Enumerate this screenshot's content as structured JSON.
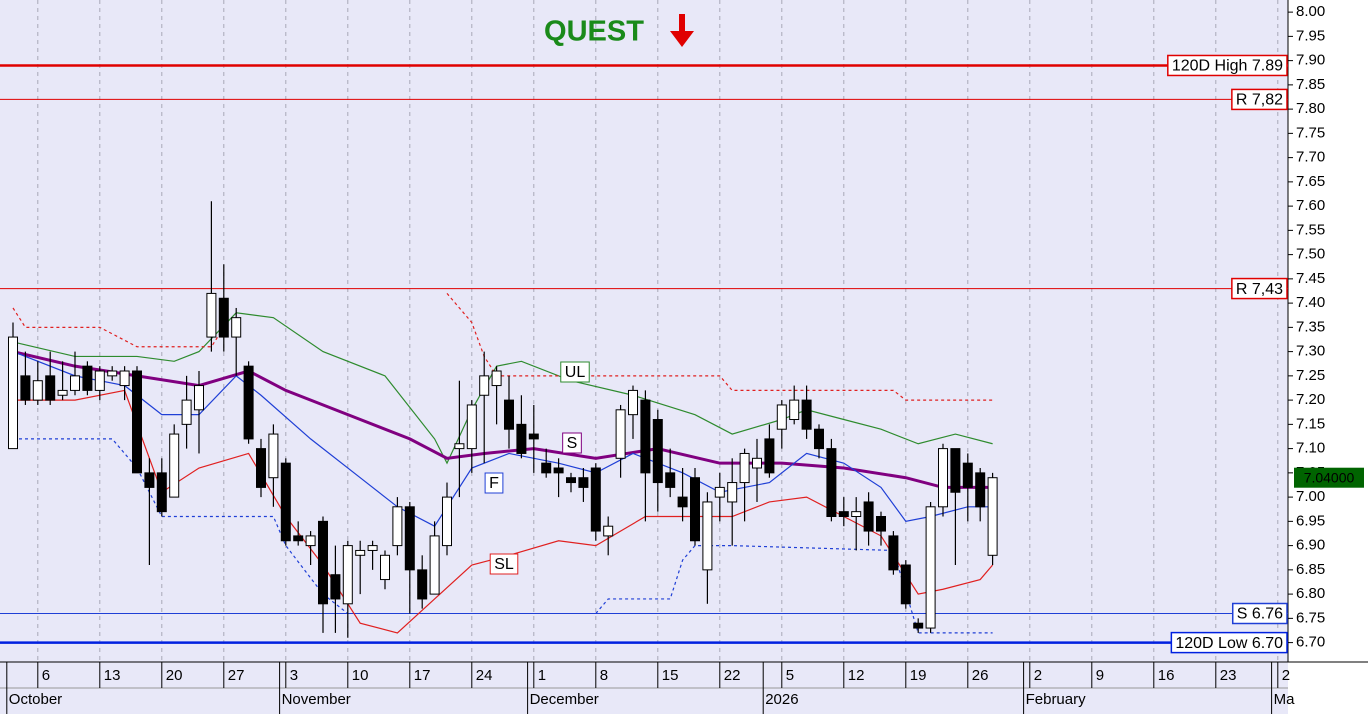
{
  "chart_data": {
    "type": "candlestick",
    "title": "QUEST",
    "categories": [
      null,
      null,
      "6",
      null,
      null,
      null,
      null,
      "13",
      null,
      null,
      null,
      null,
      "20",
      null,
      null,
      null,
      null,
      "27",
      null,
      null,
      null,
      null,
      "3",
      null,
      null,
      null,
      null,
      "10",
      null,
      null,
      null,
      null,
      "17",
      null,
      null,
      null,
      null,
      "24",
      null,
      null,
      null,
      null,
      "1",
      null,
      null,
      null,
      null,
      "8",
      null,
      null,
      null,
      null,
      "15",
      null,
      null,
      null,
      null,
      "22",
      null,
      null,
      null,
      null,
      "5",
      null,
      null,
      null,
      null,
      "12",
      null,
      null,
      null,
      null,
      "19",
      null,
      null,
      null,
      null,
      "26",
      null,
      null,
      null,
      null,
      "2",
      null,
      null,
      null,
      null,
      "9",
      null,
      null,
      null,
      null,
      "16",
      null,
      null,
      null,
      null,
      "23",
      null,
      null,
      null,
      null,
      "2"
    ],
    "month_categories": [
      "October",
      null,
      null,
      null,
      null,
      null,
      null,
      null,
      null,
      null,
      null,
      null,
      null,
      null,
      null,
      null,
      null,
      null,
      null,
      null,
      null,
      null,
      "November",
      null,
      null,
      null,
      null,
      null,
      null,
      null,
      null,
      null,
      null,
      null,
      null,
      null,
      null,
      null,
      null,
      null,
      null,
      null,
      "December",
      null,
      null,
      null,
      null,
      null,
      null,
      null,
      null,
      null,
      null,
      null,
      null,
      null,
      null,
      null,
      null,
      null,
      null,
      "2026",
      null,
      null,
      null,
      null,
      null,
      null,
      null,
      null,
      null,
      null,
      null,
      null,
      null,
      null,
      null,
      null,
      null,
      null,
      null,
      null,
      "February",
      null,
      null,
      null,
      null,
      null,
      null,
      null,
      null,
      null,
      null,
      null,
      null,
      null,
      null,
      null,
      null,
      null,
      null,
      null,
      "Ma"
    ],
    "open": [
      7.1,
      7.25,
      7.2,
      7.25,
      7.21,
      7.22,
      7.27,
      7.22,
      7.25,
      7.23,
      7.26,
      7.05,
      7.05,
      7.0,
      7.15,
      7.18,
      7.33,
      7.41,
      7.33,
      7.27,
      7.1,
      7.04,
      7.07,
      6.92,
      6.9,
      6.95,
      6.84,
      6.78,
      6.88,
      6.89,
      6.83,
      6.9,
      6.98,
      6.85,
      6.8,
      6.9,
      7.1,
      7.1,
      7.21,
      7.23,
      7.2,
      7.15,
      7.13,
      7.07,
      7.06,
      7.04,
      7.04,
      7.06,
      6.92,
      7.08,
      7.17,
      7.2,
      7.16,
      7.05,
      7.0,
      7.04,
      6.85,
      7.0,
      6.99,
      7.03,
      7.06,
      7.12,
      7.14,
      7.16,
      7.2,
      7.14,
      7.1,
      6.97,
      6.96,
      6.99,
      6.96,
      6.92,
      6.86,
      6.74,
      6.73,
      6.98,
      7.1,
      7.07,
      7.05,
      6.88,
      null,
      null,
      null,
      null,
      null,
      null,
      null,
      null,
      null,
      null,
      null,
      null,
      null,
      null,
      null,
      null,
      null,
      null,
      null,
      null,
      null,
      null,
      null
    ],
    "high": [
      7.36,
      7.3,
      7.28,
      7.3,
      7.28,
      7.3,
      7.28,
      7.27,
      7.27,
      7.27,
      7.27,
      7.08,
      7.08,
      7.15,
      7.25,
      7.26,
      7.61,
      7.48,
      7.39,
      7.28,
      7.12,
      7.15,
      7.08,
      6.95,
      6.93,
      6.96,
      6.9,
      6.91,
      6.91,
      6.91,
      6.89,
      7.0,
      6.99,
      6.88,
      6.95,
      7.03,
      7.24,
      7.2,
      7.3,
      7.27,
      7.25,
      7.21,
      7.19,
      7.1,
      7.08,
      7.05,
      7.06,
      7.07,
      6.96,
      7.19,
      7.23,
      7.22,
      7.18,
      7.1,
      7.06,
      7.06,
      7.01,
      7.05,
      7.08,
      7.1,
      7.12,
      7.15,
      7.2,
      7.23,
      7.23,
      7.15,
      7.12,
      7.0,
      7.0,
      7.01,
      6.97,
      6.93,
      6.87,
      6.75,
      6.99,
      7.11,
      7.1,
      7.09,
      7.06,
      7.05,
      null,
      null,
      null,
      null,
      null,
      null,
      null,
      null,
      null,
      null,
      null,
      null,
      null,
      null,
      null,
      null,
      null,
      null,
      null,
      null,
      null,
      null,
      null
    ],
    "low": [
      7.1,
      7.19,
      7.19,
      7.19,
      7.2,
      7.21,
      7.21,
      7.2,
      7.24,
      7.2,
      7.05,
      6.86,
      6.96,
      7.0,
      7.1,
      7.09,
      7.3,
      7.3,
      7.25,
      7.11,
      7.0,
      6.98,
      6.9,
      6.9,
      6.86,
      6.72,
      6.72,
      6.71,
      6.8,
      6.85,
      6.81,
      6.88,
      6.76,
      6.77,
      6.8,
      6.88,
      7.0,
      7.05,
      7.07,
      7.15,
      7.1,
      7.08,
      7.05,
      7.04,
      7.0,
      7.01,
      6.99,
      6.91,
      6.88,
      7.04,
      7.12,
      6.95,
      6.97,
      7.0,
      6.95,
      6.9,
      6.78,
      6.95,
      6.9,
      6.95,
      6.99,
      7.04,
      7.1,
      7.15,
      7.12,
      7.08,
      6.95,
      6.94,
      6.89,
      6.9,
      6.9,
      6.84,
      6.77,
      6.72,
      6.72,
      6.96,
      6.86,
      6.95,
      6.95,
      6.86,
      null,
      null,
      null,
      null,
      null,
      null,
      null,
      null,
      null,
      null,
      null,
      null,
      null,
      null,
      null,
      null,
      null,
      null,
      null,
      null,
      null,
      null,
      null
    ],
    "close": [
      7.33,
      7.2,
      7.24,
      7.2,
      7.22,
      7.25,
      7.22,
      7.26,
      7.26,
      7.26,
      7.05,
      7.02,
      6.97,
      7.13,
      7.2,
      7.23,
      7.42,
      7.33,
      7.37,
      7.12,
      7.02,
      7.13,
      6.91,
      6.91,
      6.92,
      6.78,
      6.79,
      6.9,
      6.89,
      6.9,
      6.88,
      6.98,
      6.85,
      6.79,
      6.92,
      7.0,
      7.11,
      7.19,
      7.25,
      7.26,
      7.14,
      7.09,
      7.12,
      7.05,
      7.05,
      7.03,
      7.02,
      6.93,
      6.94,
      7.18,
      7.22,
      7.05,
      7.03,
      7.02,
      6.98,
      6.91,
      6.99,
      7.02,
      7.03,
      7.09,
      7.08,
      7.05,
      7.19,
      7.2,
      7.14,
      7.1,
      6.96,
      6.96,
      6.97,
      6.93,
      6.93,
      6.85,
      6.78,
      6.73,
      6.98,
      7.1,
      7.01,
      7.02,
      6.98,
      7.04,
      null,
      null,
      null,
      null,
      null,
      null,
      null,
      null,
      null,
      null,
      null,
      null,
      null,
      null,
      null,
      null,
      null,
      null,
      null,
      null,
      null,
      null,
      null
    ],
    "series": [
      {
        "name": "UL",
        "color": "#2e8b2e",
        "x": [
          0,
          5,
          10,
          13,
          15,
          18,
          21,
          25,
          30,
          34,
          35,
          37,
          39,
          41,
          45,
          50,
          55,
          58,
          62,
          64,
          67,
          70,
          73,
          76,
          79
        ],
        "values": [
          7.32,
          7.29,
          7.29,
          7.28,
          7.3,
          7.38,
          7.37,
          7.3,
          7.25,
          7.12,
          7.07,
          7.18,
          7.27,
          7.28,
          7.24,
          7.21,
          7.17,
          7.13,
          7.16,
          7.18,
          7.16,
          7.14,
          7.11,
          7.13,
          7.11
        ]
      },
      {
        "name": "S",
        "color": "#800080",
        "width": 3,
        "x": [
          0,
          5,
          10,
          15,
          19,
          22,
          27,
          32,
          35,
          38,
          42,
          47,
          52,
          57,
          62,
          67,
          72,
          75,
          79
        ],
        "values": [
          7.3,
          7.27,
          7.25,
          7.23,
          7.26,
          7.22,
          7.17,
          7.12,
          7.08,
          7.09,
          7.1,
          7.08,
          7.1,
          7.07,
          7.07,
          7.06,
          7.04,
          7.02,
          7.02
        ]
      },
      {
        "name": "F",
        "color": "#1f3fd6",
        "x": [
          0,
          5,
          9,
          12,
          15,
          18,
          20,
          24,
          28,
          31,
          34,
          37,
          40,
          44,
          47,
          50,
          54,
          57,
          61,
          64,
          67,
          70,
          72,
          74,
          77,
          79
        ],
        "values": [
          7.3,
          7.25,
          7.23,
          7.17,
          7.17,
          7.25,
          7.21,
          7.12,
          7.04,
          6.98,
          6.94,
          7.06,
          7.09,
          7.07,
          7.05,
          7.09,
          7.05,
          7.01,
          7.03,
          7.09,
          7.07,
          7.02,
          6.95,
          6.96,
          6.98,
          6.98
        ]
      },
      {
        "name": "SL",
        "color": "#e02020",
        "x": [
          0,
          5,
          9,
          12,
          15,
          19,
          22,
          25,
          28,
          31,
          34,
          37,
          40,
          44,
          47,
          51,
          55,
          58,
          61,
          64,
          67,
          70,
          72,
          73,
          75,
          78,
          79
        ],
        "values": [
          7.2,
          7.2,
          7.22,
          7.01,
          7.06,
          7.09,
          6.96,
          6.86,
          6.74,
          6.72,
          6.79,
          6.86,
          6.88,
          6.91,
          6.9,
          6.96,
          6.96,
          6.96,
          6.99,
          7.0,
          6.96,
          6.92,
          6.84,
          6.8,
          6.81,
          6.83,
          6.86
        ]
      },
      {
        "color": "#e02020",
        "style": "dashed",
        "x": [
          0,
          1,
          7,
          10,
          16,
          17,
          26,
          35,
          37,
          38,
          39,
          57,
          58,
          71,
          72,
          79
        ],
        "values": [
          7.39,
          7.35,
          7.35,
          7.31,
          7.31,
          7.35,
          null,
          7.42,
          7.36,
          7.29,
          7.25,
          7.25,
          7.22,
          7.22,
          7.2,
          7.2
        ]
      },
      {
        "color": "#1f3fd6",
        "style": "dashed",
        "x": [
          0,
          8,
          10,
          12,
          21,
          22,
          25,
          27,
          37,
          47,
          48,
          53,
          54,
          55,
          58,
          71,
          73,
          79
        ],
        "values": [
          7.12,
          7.12,
          7.06,
          6.96,
          6.96,
          6.9,
          6.8,
          6.76,
          null,
          6.76,
          6.79,
          6.79,
          6.87,
          6.9,
          6.9,
          6.89,
          6.72,
          6.72
        ]
      }
    ],
    "levels": [
      {
        "label": "120D High 7.89",
        "value": 7.89,
        "color": "#e00000",
        "width": 2.5
      },
      {
        "label": "R 7,82",
        "value": 7.82,
        "color": "#e00000",
        "width": 1
      },
      {
        "label": "R 7,43",
        "value": 7.43,
        "color": "#e00000",
        "width": 1
      },
      {
        "label": "S 6.76",
        "value": 6.76,
        "color": "#1f3fd6",
        "width": 1
      },
      {
        "label": "120D Low 6.70",
        "value": 6.7,
        "color": "#0020e0",
        "width": 2.5
      }
    ],
    "last_price": {
      "value": 7.04,
      "label": "7.04000"
    },
    "ylim": [
      6.66,
      8.025
    ],
    "yticks": [
      {
        "value": 6.7,
        "label": "6.70"
      },
      {
        "value": 6.75,
        "label": "6.75"
      },
      {
        "value": 6.8,
        "label": "6.80"
      },
      {
        "value": 6.85,
        "label": "6.85"
      },
      {
        "value": 6.9,
        "label": "6.90"
      },
      {
        "value": 6.95,
        "label": "6.95"
      },
      {
        "value": 7.0,
        "label": "7.00"
      },
      {
        "value": 7.05,
        "label": "7.05"
      },
      {
        "value": 7.1,
        "label": "7.10"
      },
      {
        "value": 7.15,
        "label": "7.15"
      },
      {
        "value": 7.2,
        "label": "7.20"
      },
      {
        "value": 7.25,
        "label": "7.25"
      },
      {
        "value": 7.3,
        "label": "7.30"
      },
      {
        "value": 7.35,
        "label": "7.35"
      },
      {
        "value": 7.4,
        "label": "7.40"
      },
      {
        "value": 7.45,
        "label": "7.45"
      },
      {
        "value": 7.5,
        "label": "7.50"
      },
      {
        "value": 7.55,
        "label": "7.55"
      },
      {
        "value": 7.6,
        "label": "7.60"
      },
      {
        "value": 7.65,
        "label": "7.65"
      },
      {
        "value": 7.7,
        "label": "7.70"
      },
      {
        "value": 7.75,
        "label": "7.75"
      },
      {
        "value": 7.8,
        "label": "7.80"
      },
      {
        "value": 7.85,
        "label": "7.85"
      },
      {
        "value": 7.9,
        "label": "7.90"
      },
      {
        "value": 7.95,
        "label": "7.95"
      },
      {
        "value": 8.0,
        "label": "8.00"
      }
    ],
    "grid": true
  }
}
